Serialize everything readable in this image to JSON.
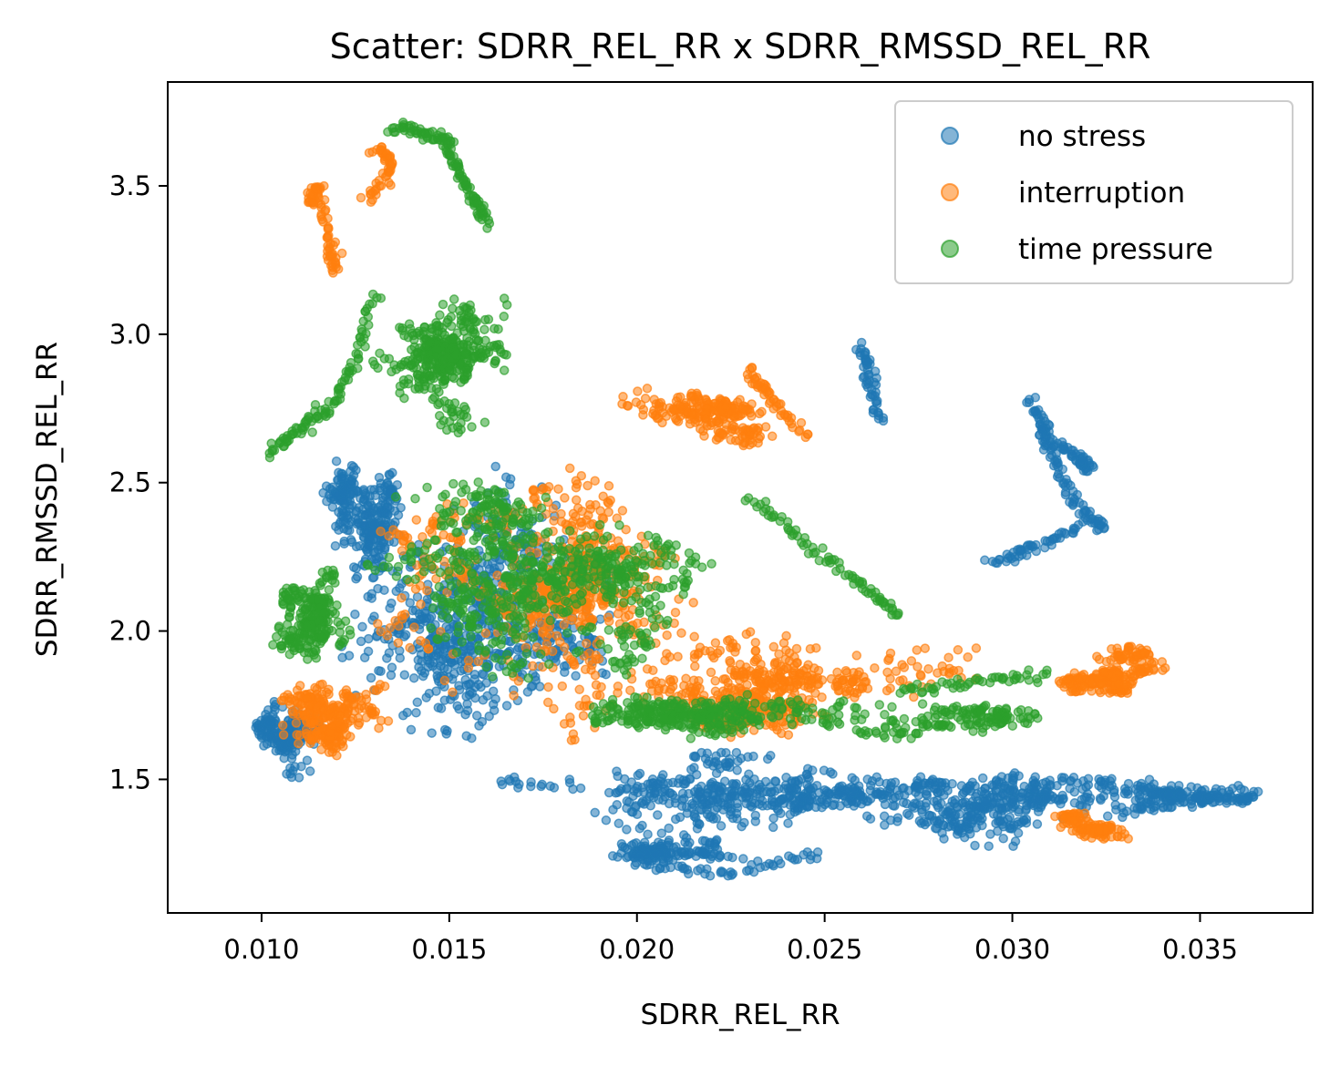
{
  "chart_data": {
    "type": "scatter",
    "title": "Scatter: SDRR_REL_RR x SDRR_RMSSD_REL_RR",
    "xlabel": "SDRR_REL_RR",
    "ylabel": "SDRR_RMSSD_REL_RR",
    "xlim": [
      0.0075,
      0.038
    ],
    "ylim": [
      1.05,
      3.85
    ],
    "xticks": [
      0.01,
      0.015,
      0.02,
      0.025,
      0.03,
      0.035
    ],
    "xtick_labels": [
      "0.010",
      "0.015",
      "0.020",
      "0.025",
      "0.030",
      "0.035"
    ],
    "yticks": [
      1.5,
      2.0,
      2.5,
      3.0,
      3.5
    ],
    "ytick_labels": [
      "1.5",
      "2.0",
      "2.5",
      "3.0",
      "3.5"
    ],
    "grid": false,
    "legend_position": "top-right",
    "series": [
      {
        "name": "no stress",
        "color": "#1f77b4",
        "clusters": [
          {
            "x": 0.016,
            "y": 2.0,
            "sx": 0.0035,
            "sy": 0.35,
            "n": 700
          },
          {
            "x": 0.023,
            "y": 1.45,
            "sx": 0.004,
            "sy": 0.12,
            "n": 500
          },
          {
            "x": 0.029,
            "y": 1.4,
            "sx": 0.004,
            "sy": 0.1,
            "n": 450
          },
          {
            "x": 0.013,
            "y": 2.5,
            "sx": 0.0012,
            "sy": 0.3,
            "n": 300
          },
          {
            "x": 0.0105,
            "y": 1.65,
            "sx": 0.001,
            "sy": 0.15,
            "n": 200
          },
          {
            "x": 0.034,
            "y": 1.45,
            "sx": 0.0015,
            "sy": 0.05,
            "n": 120
          },
          {
            "x": 0.02,
            "y": 1.25,
            "sx": 0.0025,
            "sy": 0.04,
            "n": 150
          }
        ],
        "paths": [
          [
            [
              0.0305,
              2.78
            ],
            [
              0.031,
              2.65
            ],
            [
              0.0318,
              2.58
            ],
            [
              0.0321,
              2.55
            ]
          ],
          [
            [
              0.0307,
              2.7
            ],
            [
              0.0312,
              2.55
            ],
            [
              0.0318,
              2.4
            ],
            [
              0.0325,
              2.35
            ]
          ],
          [
            [
              0.0295,
              2.23
            ],
            [
              0.0305,
              2.28
            ],
            [
              0.0318,
              2.35
            ]
          ],
          [
            [
              0.026,
              2.96
            ],
            [
              0.0262,
              2.85
            ],
            [
              0.0265,
              2.7
            ]
          ],
          [
            [
              0.0325,
              1.47
            ],
            [
              0.0345,
              1.44
            ],
            [
              0.0365,
              1.46
            ]
          ],
          [
            [
              0.02,
              1.21
            ],
            [
              0.0225,
              1.18
            ],
            [
              0.025,
              1.26
            ]
          ]
        ]
      },
      {
        "name": "interruption",
        "color": "#ff7f0e",
        "clusters": [
          {
            "x": 0.018,
            "y": 2.1,
            "sx": 0.0035,
            "sy": 0.3,
            "n": 650
          },
          {
            "x": 0.024,
            "y": 1.8,
            "sx": 0.0045,
            "sy": 0.14,
            "n": 500
          },
          {
            "x": 0.032,
            "y": 1.85,
            "sx": 0.0015,
            "sy": 0.07,
            "n": 250
          },
          {
            "x": 0.012,
            "y": 1.75,
            "sx": 0.0015,
            "sy": 0.15,
            "n": 300
          },
          {
            "x": 0.0225,
            "y": 2.7,
            "sx": 0.0025,
            "sy": 0.12,
            "n": 250
          },
          {
            "x": 0.032,
            "y": 1.32,
            "sx": 0.0015,
            "sy": 0.04,
            "n": 120
          }
        ],
        "paths": [
          [
            [
              0.0113,
              3.44
            ],
            [
              0.0115,
              3.5
            ],
            [
              0.0118,
              3.3
            ],
            [
              0.012,
              3.2
            ]
          ],
          [
            [
              0.013,
              3.63
            ],
            [
              0.0135,
              3.57
            ],
            [
              0.0128,
              3.44
            ]
          ],
          [
            [
              0.023,
              2.87
            ],
            [
              0.0235,
              2.8
            ],
            [
              0.0245,
              2.65
            ]
          ]
        ]
      },
      {
        "name": "time pressure",
        "color": "#2ca02c",
        "clusters": [
          {
            "x": 0.0175,
            "y": 2.2,
            "sx": 0.003,
            "sy": 0.25,
            "n": 700
          },
          {
            "x": 0.0145,
            "y": 2.9,
            "sx": 0.002,
            "sy": 0.2,
            "n": 400
          },
          {
            "x": 0.022,
            "y": 1.75,
            "sx": 0.0035,
            "sy": 0.12,
            "n": 350
          },
          {
            "x": 0.0115,
            "y": 2.0,
            "sx": 0.0012,
            "sy": 0.2,
            "n": 250
          },
          {
            "x": 0.027,
            "y": 1.65,
            "sx": 0.0025,
            "sy": 0.08,
            "n": 150
          }
        ],
        "paths": [
          [
            [
              0.0135,
              3.7
            ],
            [
              0.0143,
              3.68
            ],
            [
              0.015,
              3.65
            ],
            [
              0.0152,
              3.55
            ],
            [
              0.0157,
              3.45
            ],
            [
              0.016,
              3.38
            ]
          ],
          [
            [
              0.0103,
              2.6
            ],
            [
              0.011,
              2.68
            ],
            [
              0.0118,
              2.75
            ],
            [
              0.0125,
              2.9
            ],
            [
              0.013,
              3.15
            ]
          ],
          [
            [
              0.023,
              2.45
            ],
            [
              0.0245,
              2.3
            ],
            [
              0.026,
              2.15
            ],
            [
              0.027,
              2.05
            ]
          ],
          [
            [
              0.027,
              1.8
            ],
            [
              0.029,
              1.83
            ],
            [
              0.031,
              1.86
            ]
          ]
        ]
      }
    ]
  }
}
